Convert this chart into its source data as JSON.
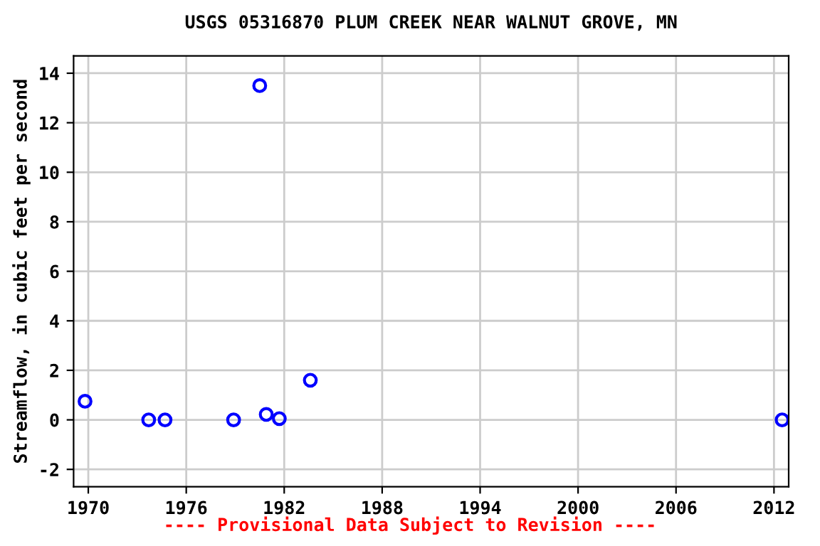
{
  "chart_data": {
    "type": "scatter",
    "title": "USGS 05316870 PLUM CREEK NEAR WALNUT GROVE, MN",
    "ylabel": "Streamflow, in cubic feet per second",
    "x": [
      1969.8,
      1973.7,
      1974.7,
      1978.9,
      1980.5,
      1980.9,
      1981.7,
      1983.6,
      2012.5
    ],
    "series": [
      {
        "color": "#0000ff",
        "values": [
          0.75,
          0,
          0,
          0,
          13.5,
          0.22,
          0.05,
          1.6,
          0
        ]
      }
    ],
    "xlim": [
      1969.1,
      2012.9
    ],
    "xticks": [
      1970,
      1976,
      1982,
      1988,
      1994,
      2000,
      2006,
      2012
    ],
    "ylim": [
      -2.7,
      14.7
    ],
    "yticks": [
      -2,
      0,
      2,
      4,
      6,
      8,
      10,
      12,
      14
    ],
    "grid": true,
    "marker": "circle",
    "legend": false,
    "annotations": [
      "---- Provisional Data Subject to Revision ----"
    ]
  }
}
